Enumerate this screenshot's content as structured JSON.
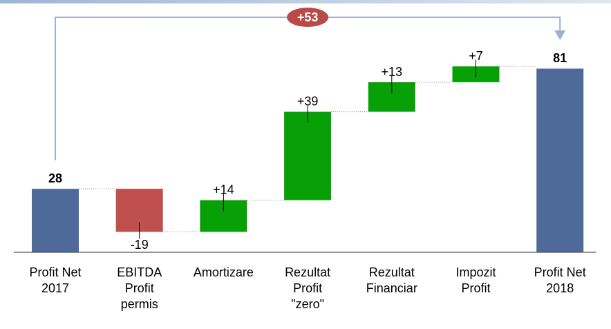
{
  "chart_data": {
    "type": "waterfall",
    "annotation": "+53",
    "categories": [
      [
        "Profit Net",
        "2017"
      ],
      [
        "EBITDA",
        "Profit",
        "permis"
      ],
      [
        "Amortizare"
      ],
      [
        "Rezultat",
        "Profit",
        "\"zero\""
      ],
      [
        "Rezultat",
        "Financiar"
      ],
      [
        "Impozit",
        "Profit"
      ],
      [
        "Profit Net",
        "2018"
      ]
    ],
    "values": [
      28,
      -19,
      14,
      39,
      13,
      7,
      81
    ],
    "value_labels": [
      "28",
      "-19",
      "+14",
      "+39",
      "+13",
      "+7",
      "81"
    ],
    "is_total": [
      true,
      false,
      false,
      false,
      false,
      false,
      true
    ],
    "colors": [
      "#4e6a98",
      "#c0504d",
      "#07a007",
      "#07a007",
      "#07a007",
      "#07a007",
      "#4e6a98"
    ],
    "annotation_color": "#b94a48"
  }
}
